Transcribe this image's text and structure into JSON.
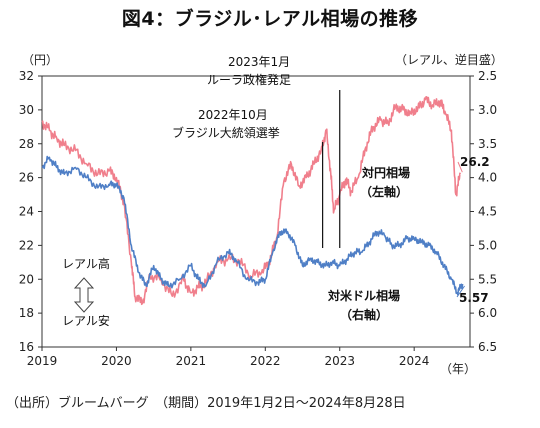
{
  "title": "図4：ブラジル･レアル相場の推移",
  "source": "（出所）ブルームバーグ　（期間）2019年1月2日～2024年8月28日",
  "chart_data": {
    "type": "line",
    "left_unit": "（円）",
    "right_unit": "（レアル、逆目盛）",
    "x_unit": "（年）",
    "x_ticks": [
      "2019",
      "2020",
      "2021",
      "2022",
      "2023",
      "2024"
    ],
    "y_left": {
      "min": 16,
      "max": 32,
      "ticks": [
        32,
        30,
        28,
        26,
        24,
        22,
        20,
        18,
        16
      ]
    },
    "y_right": {
      "min": 2.5,
      "max": 6.5,
      "inverted": true,
      "ticks": [
        "2.5",
        "3.0",
        "3.5",
        "4.0",
        "4.5",
        "5.0",
        "5.5",
        "6.0",
        "6.5"
      ]
    },
    "series": [
      {
        "name": "対円相場（左軸）",
        "label_line1": "対円相場",
        "label_line2": "（左軸）",
        "axis": "left",
        "color": "#f07f8c",
        "last_value": "26.2",
        "points": [
          [
            2019.0,
            29.3
          ],
          [
            2019.1,
            28.8
          ],
          [
            2019.2,
            28.3
          ],
          [
            2019.3,
            27.9
          ],
          [
            2019.45,
            27.6
          ],
          [
            2019.6,
            26.8
          ],
          [
            2019.75,
            26.2
          ],
          [
            2019.9,
            26.4
          ],
          [
            2020.0,
            26.0
          ],
          [
            2020.1,
            24.5
          ],
          [
            2020.2,
            21.0
          ],
          [
            2020.25,
            19.0
          ],
          [
            2020.35,
            18.6
          ],
          [
            2020.45,
            20.2
          ],
          [
            2020.6,
            20.0
          ],
          [
            2020.75,
            19.0
          ],
          [
            2020.9,
            20.0
          ],
          [
            2021.0,
            19.2
          ],
          [
            2021.1,
            19.5
          ],
          [
            2021.2,
            19.8
          ],
          [
            2021.35,
            21.0
          ],
          [
            2021.5,
            21.2
          ],
          [
            2021.65,
            21.1
          ],
          [
            2021.8,
            20.2
          ],
          [
            2021.95,
            20.4
          ],
          [
            2022.05,
            21.0
          ],
          [
            2022.15,
            22.4
          ],
          [
            2022.25,
            25.8
          ],
          [
            2022.35,
            26.8
          ],
          [
            2022.45,
            25.5
          ],
          [
            2022.55,
            26.0
          ],
          [
            2022.65,
            26.8
          ],
          [
            2022.75,
            27.6
          ],
          [
            2022.82,
            28.8
          ],
          [
            2022.88,
            26.2
          ],
          [
            2022.92,
            24.0
          ],
          [
            2023.0,
            25.0
          ],
          [
            2023.08,
            25.9
          ],
          [
            2023.15,
            25.2
          ],
          [
            2023.25,
            26.0
          ],
          [
            2023.35,
            27.8
          ],
          [
            2023.45,
            29.0
          ],
          [
            2023.55,
            29.4
          ],
          [
            2023.65,
            29.2
          ],
          [
            2023.75,
            30.2
          ],
          [
            2023.85,
            30.0
          ],
          [
            2023.95,
            29.8
          ],
          [
            2024.05,
            30.1
          ],
          [
            2024.15,
            30.6
          ],
          [
            2024.25,
            30.3
          ],
          [
            2024.35,
            30.5
          ],
          [
            2024.42,
            29.8
          ],
          [
            2024.5,
            28.8
          ],
          [
            2024.56,
            25.0
          ],
          [
            2024.62,
            26.2
          ]
        ]
      },
      {
        "name": "対米ドル相場（右軸）",
        "label_line1": "対米ドル相場",
        "label_line2": "（右軸）",
        "axis": "right",
        "color": "#4f7fc6",
        "last_value": "5.57",
        "points": [
          [
            2019.0,
            3.85
          ],
          [
            2019.1,
            3.7
          ],
          [
            2019.2,
            3.85
          ],
          [
            2019.3,
            3.95
          ],
          [
            2019.45,
            3.85
          ],
          [
            2019.6,
            4.0
          ],
          [
            2019.75,
            4.15
          ],
          [
            2019.9,
            4.1
          ],
          [
            2020.0,
            4.1
          ],
          [
            2020.1,
            4.3
          ],
          [
            2020.2,
            5.0
          ],
          [
            2020.3,
            5.4
          ],
          [
            2020.4,
            5.6
          ],
          [
            2020.5,
            5.3
          ],
          [
            2020.6,
            5.5
          ],
          [
            2020.7,
            5.6
          ],
          [
            2020.85,
            5.5
          ],
          [
            2021.0,
            5.3
          ],
          [
            2021.1,
            5.5
          ],
          [
            2021.2,
            5.6
          ],
          [
            2021.35,
            5.25
          ],
          [
            2021.5,
            5.1
          ],
          [
            2021.6,
            5.2
          ],
          [
            2021.75,
            5.5
          ],
          [
            2021.9,
            5.55
          ],
          [
            2022.0,
            5.5
          ],
          [
            2022.1,
            5.1
          ],
          [
            2022.2,
            4.8
          ],
          [
            2022.3,
            4.8
          ],
          [
            2022.4,
            5.0
          ],
          [
            2022.5,
            5.3
          ],
          [
            2022.6,
            5.2
          ],
          [
            2022.7,
            5.25
          ],
          [
            2022.8,
            5.3
          ],
          [
            2022.9,
            5.25
          ],
          [
            2023.0,
            5.3
          ],
          [
            2023.1,
            5.2
          ],
          [
            2023.2,
            5.1
          ],
          [
            2023.3,
            5.1
          ],
          [
            2023.4,
            4.95
          ],
          [
            2023.5,
            4.8
          ],
          [
            2023.6,
            4.85
          ],
          [
            2023.7,
            5.0
          ],
          [
            2023.8,
            5.0
          ],
          [
            2023.9,
            4.9
          ],
          [
            2024.0,
            4.9
          ],
          [
            2024.1,
            4.95
          ],
          [
            2024.2,
            5.0
          ],
          [
            2024.3,
            5.1
          ],
          [
            2024.4,
            5.3
          ],
          [
            2024.5,
            5.5
          ],
          [
            2024.58,
            5.7
          ],
          [
            2024.65,
            5.57
          ]
        ]
      }
    ],
    "annotations": [
      {
        "text": "2023年1月",
        "text2": "ルーラ政権発足",
        "x": 2023.0
      },
      {
        "text": "2022年10月",
        "text2": "ブラジル大統領選挙",
        "x": 2022.77
      }
    ],
    "side_labels": {
      "up": "レアル高",
      "down": "レアル安"
    }
  }
}
